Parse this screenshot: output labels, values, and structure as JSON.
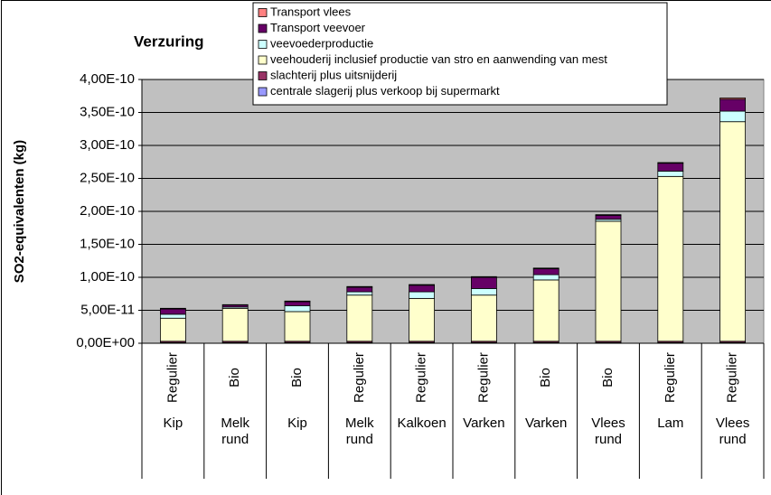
{
  "chart_data": {
    "type": "stacked_bar",
    "title": "Verzuring",
    "y_label": "SO2-equivalenten (kg)",
    "categories": [
      "Kip",
      "Melk rund",
      "Kip",
      "Melk rund",
      "Kalkoen",
      "Varken",
      "Varken",
      "Vlees rund",
      "Lam",
      "Vlees rund"
    ],
    "subcategories": [
      "Regulier",
      "Bio",
      "Bio",
      "Regulier",
      "Regulier",
      "Regulier",
      "Bio",
      "Bio",
      "Regulier",
      "Regulier"
    ],
    "series": [
      {
        "name": "centrale slagerij plus verkoop bij supermarkt",
        "color": "#9999ff",
        "values": [
          1e-12,
          1e-12,
          1e-12,
          1e-12,
          1e-12,
          1e-12,
          1e-12,
          1e-12,
          1e-12,
          1e-12
        ]
      },
      {
        "name": "slachterij plus uitsnijderij",
        "color": "#993366",
        "values": [
          2e-12,
          2e-12,
          2e-12,
          2e-12,
          2e-12,
          2e-12,
          2e-12,
          2e-12,
          2e-12,
          2e-12
        ]
      },
      {
        "name": "veehouderij inclusief productie van stro en aanwending van mest",
        "color": "#ffffcc",
        "values": [
          3.5e-11,
          5e-11,
          4.5e-11,
          7e-11,
          6.5e-11,
          7e-11,
          9.3e-11,
          1.82e-10,
          2.5e-10,
          3.33e-10
        ]
      },
      {
        "name": "veevoederproductie",
        "color": "#ccffff",
        "values": [
          6e-12,
          2e-12,
          9e-12,
          5e-12,
          1e-11,
          1e-11,
          8e-12,
          3e-12,
          8e-12,
          1.6e-11
        ]
      },
      {
        "name": "Transport veevoer",
        "color": "#660066",
        "values": [
          8e-12,
          3e-12,
          6e-12,
          7e-12,
          1e-11,
          1.7e-11,
          9e-12,
          6e-12,
          1.2e-11,
          1.8e-11
        ]
      },
      {
        "name": "Transport vlees",
        "color": "#ff8080",
        "values": [
          1e-12,
          5e-13,
          1e-12,
          1e-12,
          1e-12,
          1e-12,
          1e-12,
          1e-12,
          1e-12,
          2e-12
        ]
      }
    ],
    "ylim": [
      0,
      4e-10
    ],
    "yticks": [
      {
        "value": 0,
        "label": "0,00E+00"
      },
      {
        "value": 5e-11,
        "label": "5,00E-11"
      },
      {
        "value": 1e-10,
        "label": "1,00E-10"
      },
      {
        "value": 1.5e-10,
        "label": "1,50E-10"
      },
      {
        "value": 2e-10,
        "label": "2,00E-10"
      },
      {
        "value": 2.5e-10,
        "label": "2,50E-10"
      },
      {
        "value": 3e-10,
        "label": "3,00E-10"
      },
      {
        "value": 3.5e-10,
        "label": "3,50E-10"
      },
      {
        "value": 4e-10,
        "label": "4,00E-10"
      }
    ],
    "grid": true
  }
}
